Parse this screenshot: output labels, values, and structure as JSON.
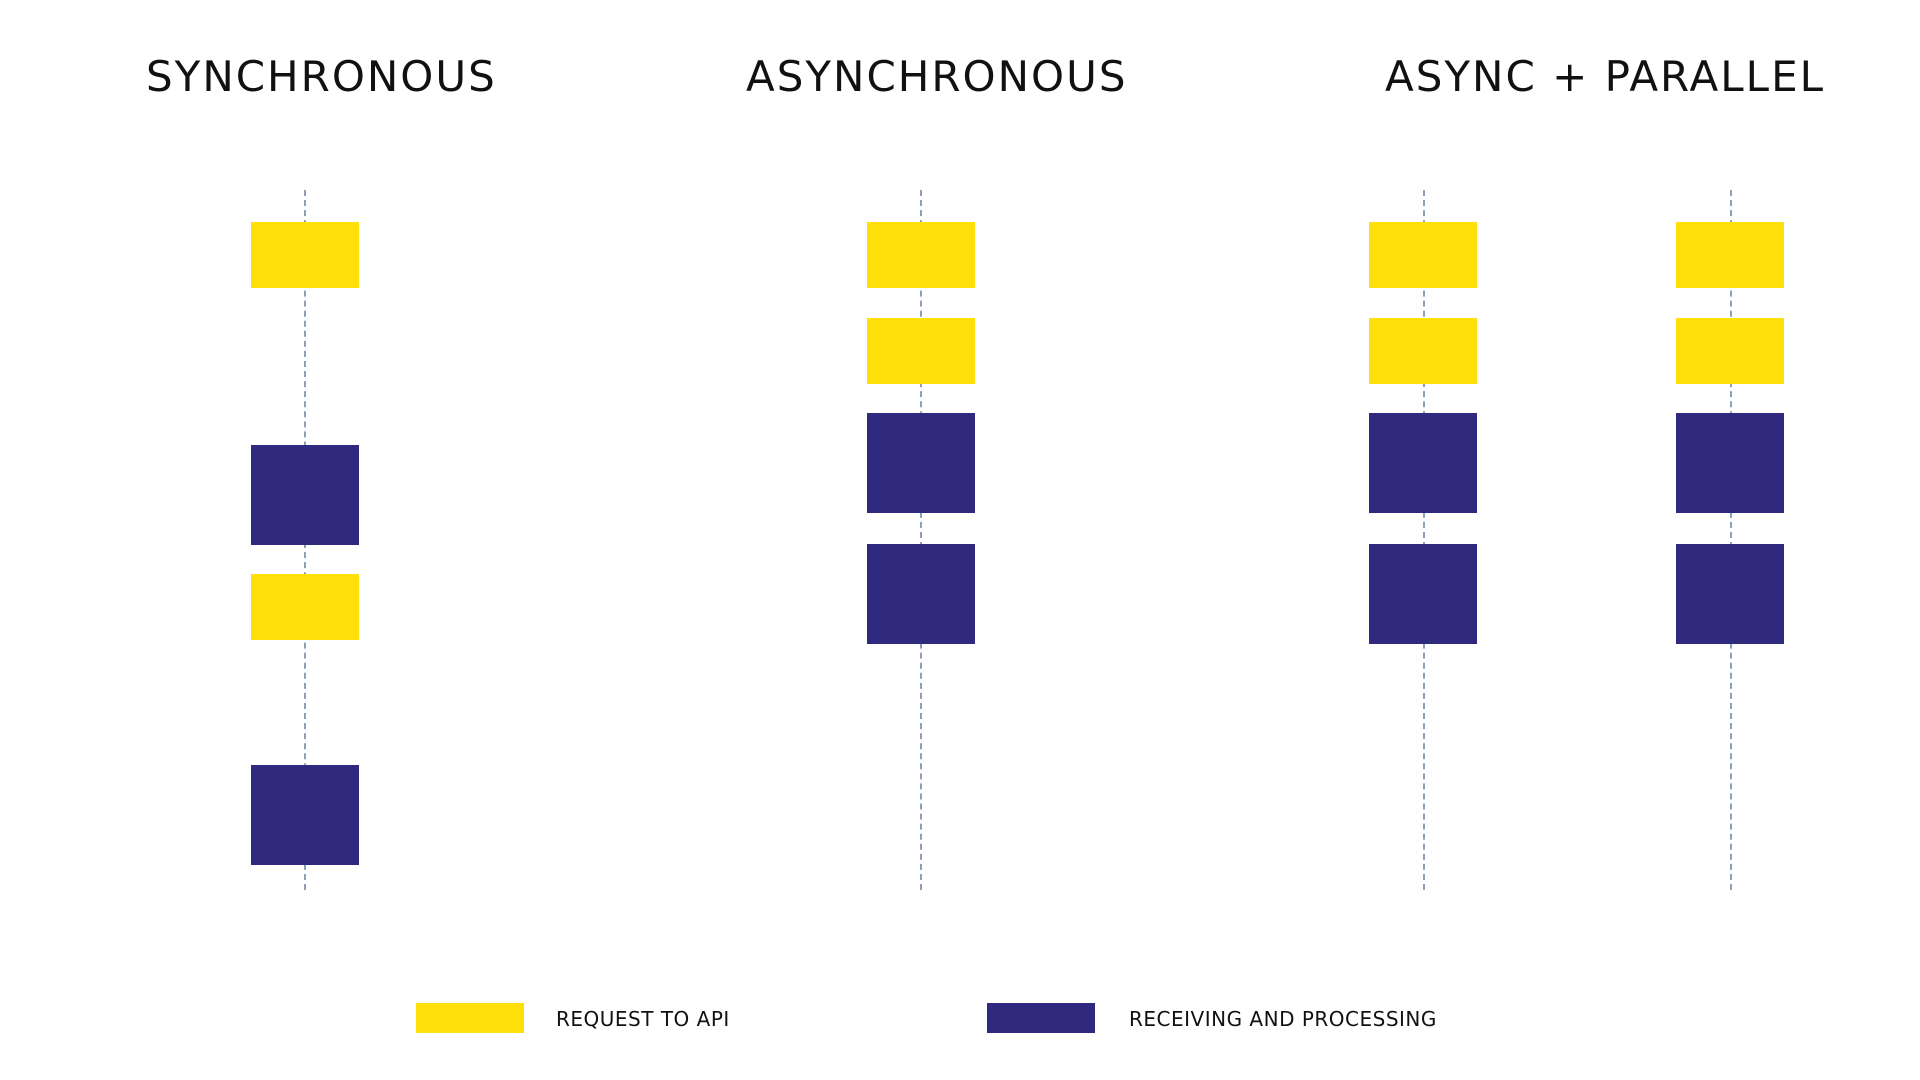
{
  "headings": {
    "synchronous": "SYNCHRONOUS",
    "asynchronous": "ASYNCHRONOUS",
    "async_parallel": "ASYNC + PARALLEL"
  },
  "legend": {
    "request": "REQUEST TO API",
    "processing": "RECEIVING AND PROCESSING"
  },
  "colors": {
    "request": "#ffe00a",
    "processing": "#2f2a7e",
    "timeline": "#8aa0b6"
  },
  "timelines": [
    {
      "group": "synchronous",
      "blocks": [
        "request",
        "processing",
        "request",
        "processing"
      ]
    },
    {
      "group": "asynchronous",
      "blocks": [
        "request",
        "request",
        "processing",
        "processing"
      ]
    },
    {
      "group": "async_parallel",
      "blocks": [
        "request",
        "request",
        "processing",
        "processing"
      ]
    },
    {
      "group": "async_parallel",
      "blocks": [
        "request",
        "request",
        "processing",
        "processing"
      ]
    }
  ]
}
